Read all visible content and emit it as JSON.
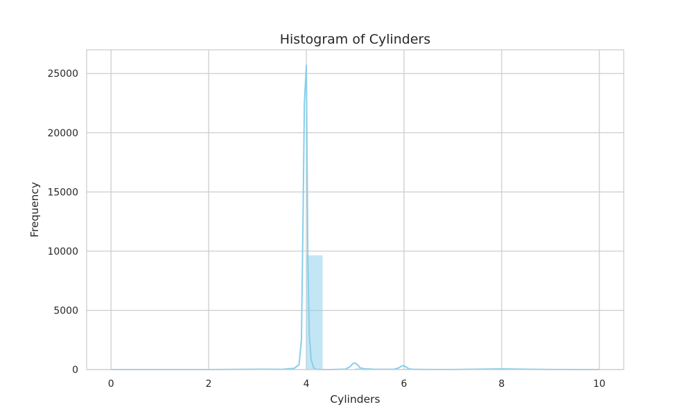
{
  "chart_data": {
    "type": "bar",
    "title": "Histogram of Cylinders",
    "xlabel": "Cylinders",
    "ylabel": "Frequency",
    "xlim": [
      -0.5,
      10.5
    ],
    "ylim": [
      0,
      27000
    ],
    "xticks": [
      0,
      2,
      4,
      6,
      8,
      10
    ],
    "yticks": [
      0,
      5000,
      10000,
      15000,
      20000,
      25000
    ],
    "grid": true,
    "bin_width": 0.333,
    "bars": [
      {
        "x0": 3.0,
        "x1": 3.333,
        "value": 20
      },
      {
        "x0": 4.0,
        "x1": 4.333,
        "value": 9650
      },
      {
        "x0": 5.0,
        "x1": 5.333,
        "value": 120
      },
      {
        "x0": 6.0,
        "x1": 6.333,
        "value": 80
      },
      {
        "x0": 8.0,
        "x1": 8.333,
        "value": 40
      }
    ],
    "kde": {
      "x": [
        0.0,
        1.0,
        2.0,
        3.0,
        3.5,
        3.75,
        3.85,
        3.9,
        3.93,
        3.96,
        4.0,
        4.03,
        4.06,
        4.1,
        4.15,
        4.2,
        4.3,
        4.5,
        4.8,
        4.9,
        4.95,
        5.0,
        5.05,
        5.1,
        5.2,
        5.4,
        5.8,
        5.9,
        5.95,
        6.0,
        6.05,
        6.1,
        6.2,
        6.5,
        7.0,
        8.0,
        9.0,
        10.0
      ],
      "y": [
        0,
        0,
        0,
        30,
        20,
        100,
        400,
        2500,
        12000,
        22500,
        25700,
        9700,
        3000,
        800,
        150,
        30,
        5,
        0,
        40,
        250,
        500,
        550,
        400,
        150,
        60,
        20,
        30,
        150,
        300,
        320,
        200,
        60,
        20,
        5,
        5,
        60,
        5,
        0
      ]
    },
    "colors": {
      "bar_fill": "#87ceeb",
      "kde_line": "#87ceeb",
      "grid": "#cccccc",
      "frame": "#cccccc",
      "text": "#262626"
    }
  }
}
